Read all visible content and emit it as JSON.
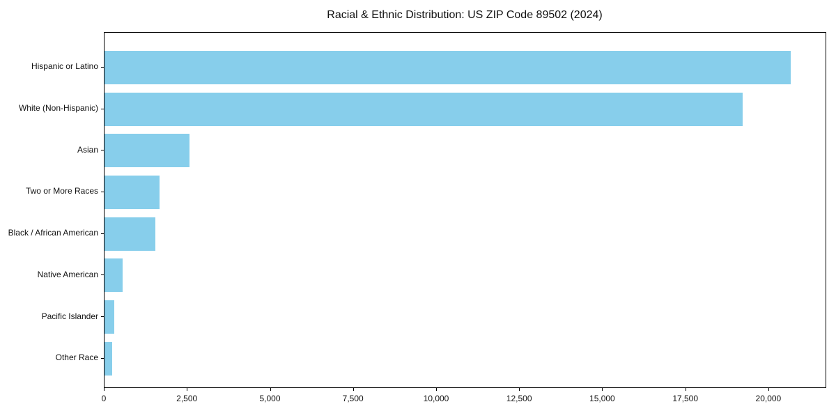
{
  "title": "Racial & Ethnic Distribution: US ZIP Code 89502 (2024)",
  "colors": {
    "bar": "#87CEEB",
    "spine": "#000000",
    "text": "#111111",
    "background": "#ffffff"
  },
  "chart_data": {
    "type": "bar",
    "orientation": "horizontal",
    "title": "Racial & Ethnic Distribution: US ZIP Code 89502 (2024)",
    "xlabel": "",
    "ylabel": "",
    "categories": [
      "Hispanic or Latino",
      "White (Non-Hispanic)",
      "Asian",
      "Two or More Races",
      "Black / African American",
      "Native American",
      "Pacific Islander",
      "Other Race"
    ],
    "values": [
      20650,
      19200,
      2550,
      1650,
      1530,
      545,
      295,
      235
    ],
    "bar_color": "#87CEEB",
    "xlim": [
      0,
      21700
    ],
    "x_ticks": [
      0,
      2500,
      5000,
      7500,
      10000,
      12500,
      15000,
      17500,
      20000
    ],
    "x_tick_labels": [
      "0",
      "2,500",
      "5,000",
      "7,500",
      "10,000",
      "12,500",
      "15,000",
      "17,500",
      "20,000"
    ],
    "grid": false,
    "legend": null
  }
}
